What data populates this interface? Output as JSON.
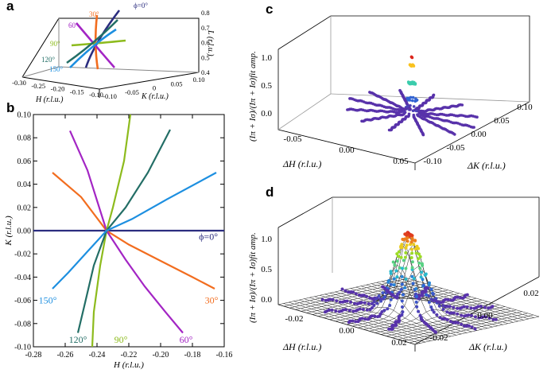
{
  "panel_labels": {
    "a": "a",
    "b": "b",
    "c": "c",
    "d": "d"
  },
  "angle_labels": [
    "ϕ=0°",
    "30°",
    "60°",
    "90°",
    "120°",
    "150°"
  ],
  "colors": {
    "phi0": "#2b2d7f",
    "phi30": "#f26d1f",
    "phi60": "#a325c4",
    "phi90": "#8dbb1d",
    "phi120": "#236e66",
    "phi150": "#1d8fe0"
  },
  "chart_data": [
    {
      "id": "a",
      "type": "line",
      "title": "",
      "xlabel": "H (r.l.u.)",
      "ylabel": "K (r.l.u.)",
      "zlabel": "L (r.l.u.)",
      "x_ticks": [
        "-0.30",
        "-0.25",
        "-0.20",
        "-0.15",
        "-0.10"
      ],
      "y_ticks": [
        "-0.10",
        "-0.05",
        "0",
        "0.05",
        "0.10"
      ],
      "z_ticks": [
        "0.4",
        "0.5",
        "0.6",
        "0.7",
        "0.8"
      ],
      "xlim": [
        -0.3,
        -0.1
      ],
      "ylim": [
        -0.1,
        0.1
      ],
      "zlim": [
        0.4,
        0.8
      ],
      "series": [
        {
          "name": "ϕ=0°",
          "color": "#2b2d7f"
        },
        {
          "name": "30°",
          "color": "#f26d1f"
        },
        {
          "name": "60°",
          "color": "#a325c4"
        },
        {
          "name": "90°",
          "color": "#8dbb1d"
        },
        {
          "name": "120°",
          "color": "#236e66"
        },
        {
          "name": "150°",
          "color": "#1d8fe0"
        }
      ]
    },
    {
      "id": "b",
      "type": "line",
      "title": "",
      "xlabel": "H (r.l.u.)",
      "ylabel": "K (r.l.u.)",
      "xlim": [
        -0.28,
        -0.16
      ],
      "ylim": [
        -0.1,
        0.1
      ],
      "x_ticks": [
        "-0.28",
        "-0.26",
        "-0.24",
        "-0.22",
        "-0.20",
        "-0.18",
        "-0.16"
      ],
      "y_ticks": [
        "-0.10",
        "-0.08",
        "-0.06",
        "-0.04",
        "-0.02",
        "0.00",
        "0.02",
        "0.04",
        "0.06",
        "0.08",
        "0.10"
      ],
      "series": [
        {
          "name": "ϕ=0°",
          "color": "#2b2d7f",
          "x": [
            -0.28,
            -0.16
          ],
          "y": [
            0.0,
            0.0
          ]
        },
        {
          "name": "30°",
          "color": "#f26d1f",
          "x": [
            -0.268,
            -0.25,
            -0.234,
            -0.22,
            -0.2,
            -0.18,
            -0.166
          ],
          "y": [
            0.05,
            0.029,
            0.0,
            -0.012,
            -0.026,
            -0.04,
            -0.05
          ]
        },
        {
          "name": "60°",
          "color": "#a325c4",
          "x": [
            -0.257,
            -0.246,
            -0.234,
            -0.222,
            -0.21,
            -0.197,
            -0.186
          ],
          "y": [
            0.086,
            0.052,
            0.0,
            -0.025,
            -0.048,
            -0.07,
            -0.088
          ]
        },
        {
          "name": "90°",
          "color": "#8dbb1d",
          "x": [
            -0.219,
            -0.223,
            -0.23,
            -0.234,
            -0.238,
            -0.242,
            -0.243
          ],
          "y": [
            0.1,
            0.06,
            0.02,
            0.0,
            -0.03,
            -0.07,
            -0.1
          ]
        },
        {
          "name": "120°",
          "color": "#236e66",
          "x": [
            -0.252,
            -0.248,
            -0.242,
            -0.234,
            -0.222,
            -0.208,
            -0.194
          ],
          "y": [
            -0.088,
            -0.065,
            -0.03,
            0.0,
            0.02,
            0.05,
            0.087
          ]
        },
        {
          "name": "150°",
          "color": "#1d8fe0",
          "x": [
            -0.268,
            -0.258,
            -0.246,
            -0.234,
            -0.218,
            -0.196,
            -0.165
          ],
          "y": [
            -0.05,
            -0.036,
            -0.018,
            0.0,
            0.01,
            0.027,
            0.05
          ]
        }
      ]
    },
    {
      "id": "c",
      "type": "scatter",
      "title": "",
      "xlabel": "ΔH (r.l.u.)",
      "ylabel": "ΔK (r.l.u.)",
      "zlabel": "(Iπ + Iσ)/(Iπ + Iσ)fit amp.",
      "x_ticks": [
        "-0.05",
        "0.00",
        "0.05"
      ],
      "y_ticks": [
        "-0.10",
        "-0.05",
        "0.00",
        "0.05",
        "0.10"
      ],
      "z_ticks": [
        "0.0",
        "0.5",
        "1.0"
      ],
      "xlim": [
        -0.05,
        0.05
      ],
      "ylim": [
        -0.1,
        0.1
      ],
      "zlim": [
        0.0,
        1.0
      ],
      "peak_height": 1.0
    },
    {
      "id": "d",
      "type": "scatter",
      "title": "",
      "xlabel": "ΔH (r.l.u.)",
      "ylabel": "ΔK (r.l.u.)",
      "zlabel": "(Iπ + Iσ)/(Iπ + Iσ)fit amp.",
      "x_ticks": [
        "-0.02",
        "0.00",
        "0.02"
      ],
      "y_ticks": [
        "-0.02",
        "0.00",
        "0.02"
      ],
      "z_ticks": [
        "0.0",
        "0.5",
        "1.0"
      ],
      "xlim": [
        -0.02,
        0.02
      ],
      "ylim": [
        -0.02,
        0.02
      ],
      "zlim": [
        0.0,
        1.0
      ],
      "peak_height": 1.0
    }
  ]
}
